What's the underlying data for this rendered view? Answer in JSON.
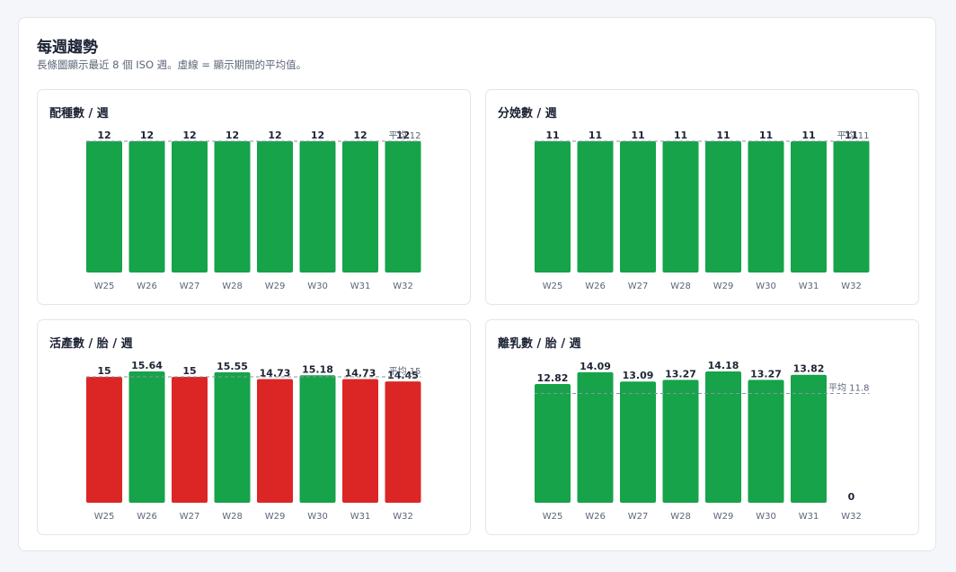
{
  "header": {
    "title": "每週趨勢",
    "subtitle": "長條圖顯示最近 8 個 ISO 週。虛線 = 顯示期間的平均值。"
  },
  "colors": {
    "good": "#16a34a",
    "bad": "#dc2626",
    "avg_line": "#8a93a3"
  },
  "chart_data": [
    {
      "type": "bar",
      "title": "配種數 / 週",
      "categories": [
        "W25",
        "W26",
        "W27",
        "W28",
        "W29",
        "W30",
        "W31",
        "W32"
      ],
      "values": [
        12,
        12,
        12,
        12,
        12,
        12,
        12,
        12
      ],
      "labels": [
        "12",
        "12",
        "12",
        "12",
        "12",
        "12",
        "12",
        "12"
      ],
      "bar_colors": [
        "good",
        "good",
        "good",
        "good",
        "good",
        "good",
        "good",
        "good"
      ],
      "average": 12,
      "average_label": "平均 12",
      "ylim": [
        0,
        12
      ]
    },
    {
      "type": "bar",
      "title": "分娩數 / 週",
      "categories": [
        "W25",
        "W26",
        "W27",
        "W28",
        "W29",
        "W30",
        "W31",
        "W32"
      ],
      "values": [
        11,
        11,
        11,
        11,
        11,
        11,
        11,
        11
      ],
      "labels": [
        "11",
        "11",
        "11",
        "11",
        "11",
        "11",
        "11",
        "11"
      ],
      "bar_colors": [
        "good",
        "good",
        "good",
        "good",
        "good",
        "good",
        "good",
        "good"
      ],
      "average": 11,
      "average_label": "平均 11",
      "ylim": [
        0,
        11
      ]
    },
    {
      "type": "bar",
      "title": "活產數 / 胎 / 週",
      "categories": [
        "W25",
        "W26",
        "W27",
        "W28",
        "W29",
        "W30",
        "W31",
        "W32"
      ],
      "values": [
        15,
        15.64,
        15,
        15.55,
        14.73,
        15.18,
        14.73,
        14.45
      ],
      "labels": [
        "15",
        "15.64",
        "15",
        "15.55",
        "14.73",
        "15.18",
        "14.73",
        "14.45"
      ],
      "bar_colors": [
        "bad",
        "good",
        "bad",
        "good",
        "bad",
        "good",
        "bad",
        "bad"
      ],
      "average": 15,
      "average_label": "平均 15",
      "ylim": [
        0,
        15.64
      ]
    },
    {
      "type": "bar",
      "title": "離乳數 / 胎 / 週",
      "categories": [
        "W25",
        "W26",
        "W27",
        "W28",
        "W29",
        "W30",
        "W31",
        "W32"
      ],
      "values": [
        12.82,
        14.09,
        13.09,
        13.27,
        14.18,
        13.27,
        13.82,
        0
      ],
      "labels": [
        "12.82",
        "14.09",
        "13.09",
        "13.27",
        "14.18",
        "13.27",
        "13.82",
        "0"
      ],
      "bar_colors": [
        "good",
        "good",
        "good",
        "good",
        "good",
        "good",
        "good",
        "good"
      ],
      "average": 11.8,
      "average_label": "平均 11.8",
      "ylim": [
        0,
        14.18
      ]
    }
  ]
}
